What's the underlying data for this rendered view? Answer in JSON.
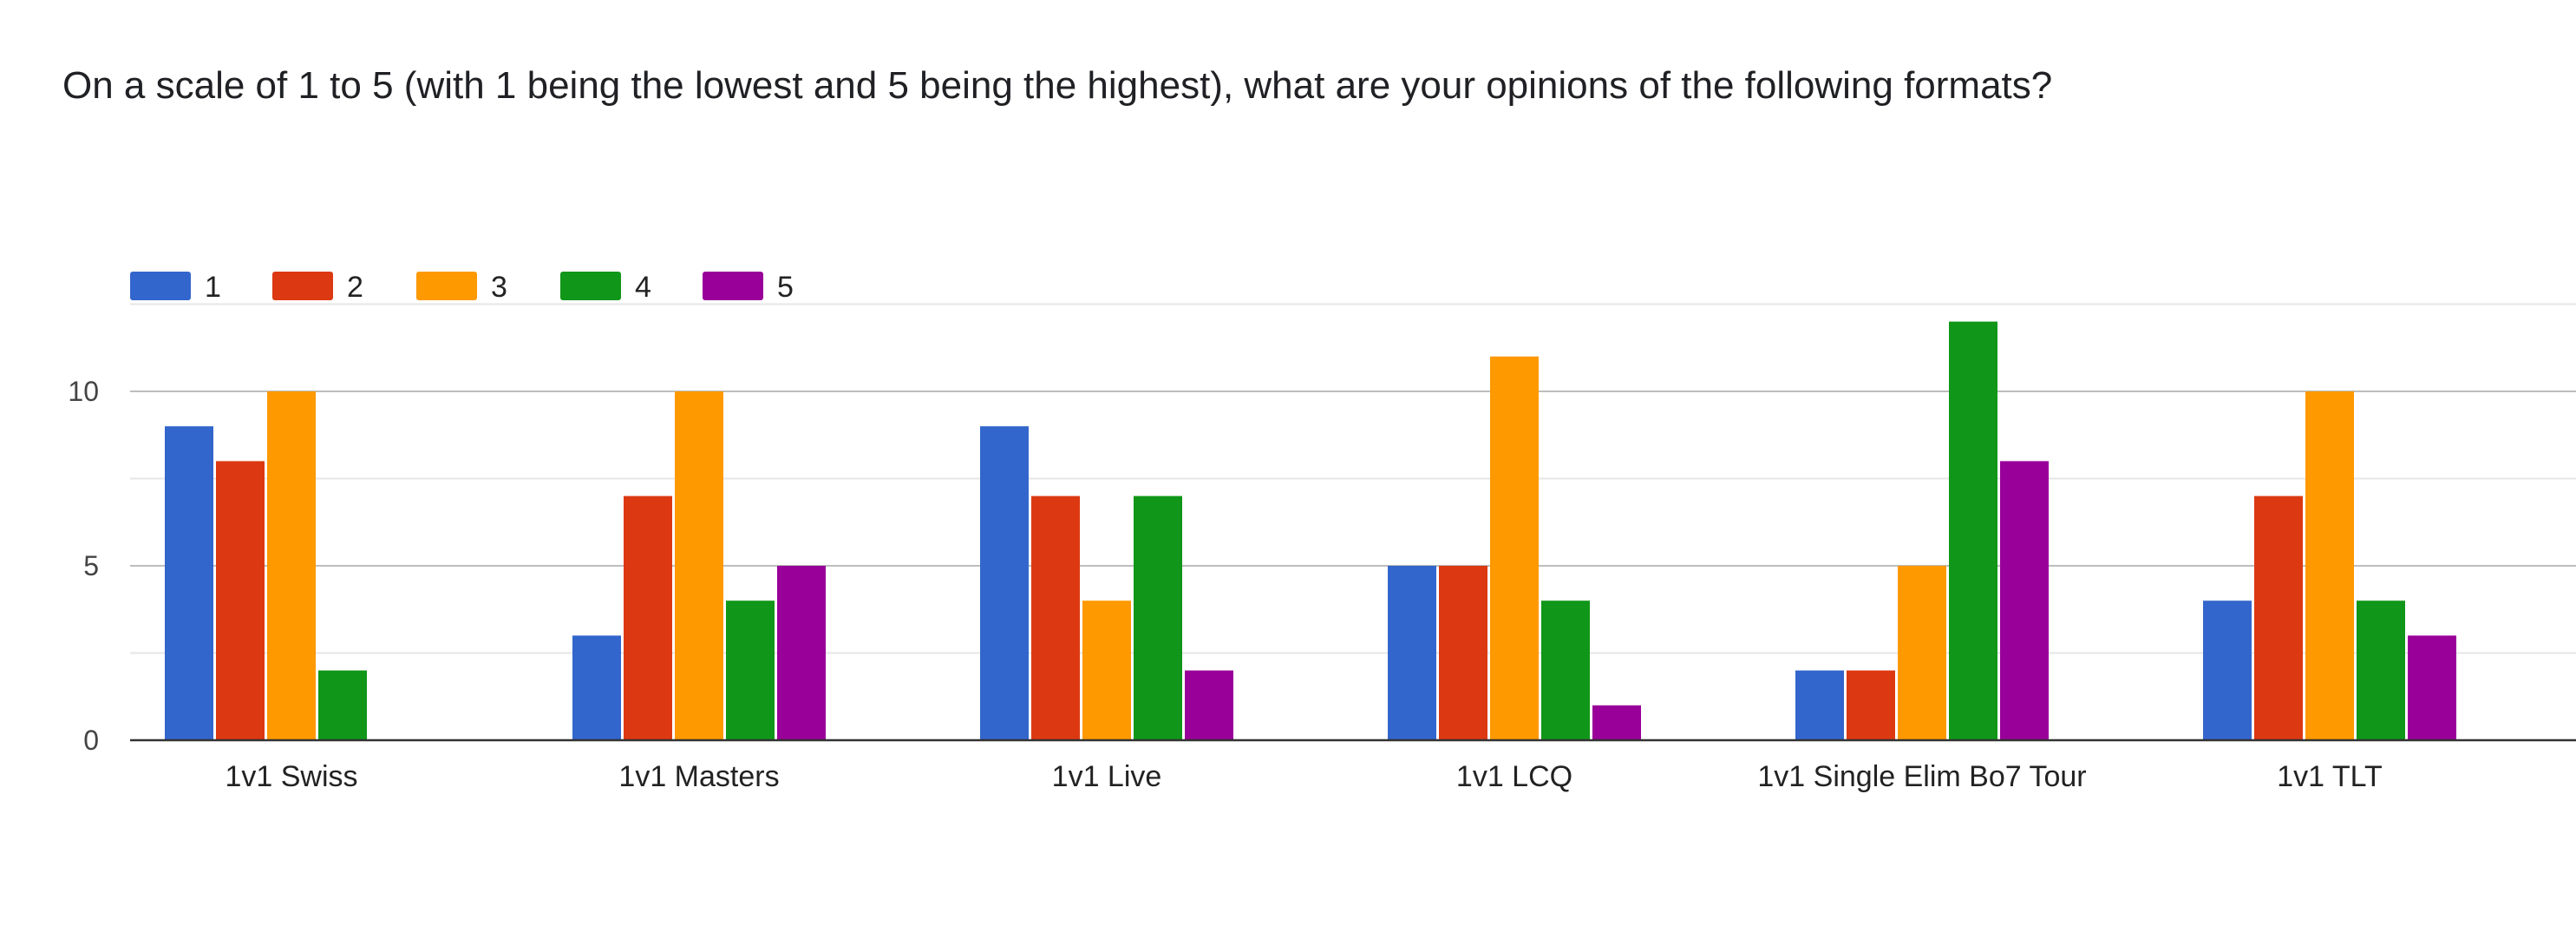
{
  "question": {
    "title": "On a scale of 1 to 5 (with 1 being the lowest and 5 being the highest), what are your opinions of the following formats?"
  },
  "chart_data": {
    "type": "bar",
    "title": "On a scale of 1 to 5 (with 1 being the lowest and 5 being the highest), what are your opinions of the following formats?",
    "xlabel": "",
    "ylabel": "",
    "categories": [
      "1v1 Swiss",
      "1v1 Masters",
      "1v1 Live",
      "1v1 LCQ",
      "1v1 Single Elim Bo7 Tour",
      "1v1 TLT"
    ],
    "series": [
      {
        "name": "1",
        "color": "#3366cc",
        "values": [
          9,
          3,
          9,
          5,
          2,
          4
        ]
      },
      {
        "name": "2",
        "color": "#dc3912",
        "values": [
          8,
          7,
          7,
          5,
          2,
          7
        ]
      },
      {
        "name": "3",
        "color": "#ff9900",
        "values": [
          10,
          10,
          4,
          11,
          5,
          10
        ]
      },
      {
        "name": "4",
        "color": "#109618",
        "values": [
          2,
          4,
          7,
          4,
          12,
          4
        ]
      },
      {
        "name": "5",
        "color": "#990099",
        "values": [
          0,
          5,
          2,
          1,
          8,
          3
        ]
      }
    ],
    "ylim": [
      0,
      12.5
    ],
    "yticks": [
      0,
      5,
      10
    ],
    "grid": true,
    "legend": "top-left"
  }
}
